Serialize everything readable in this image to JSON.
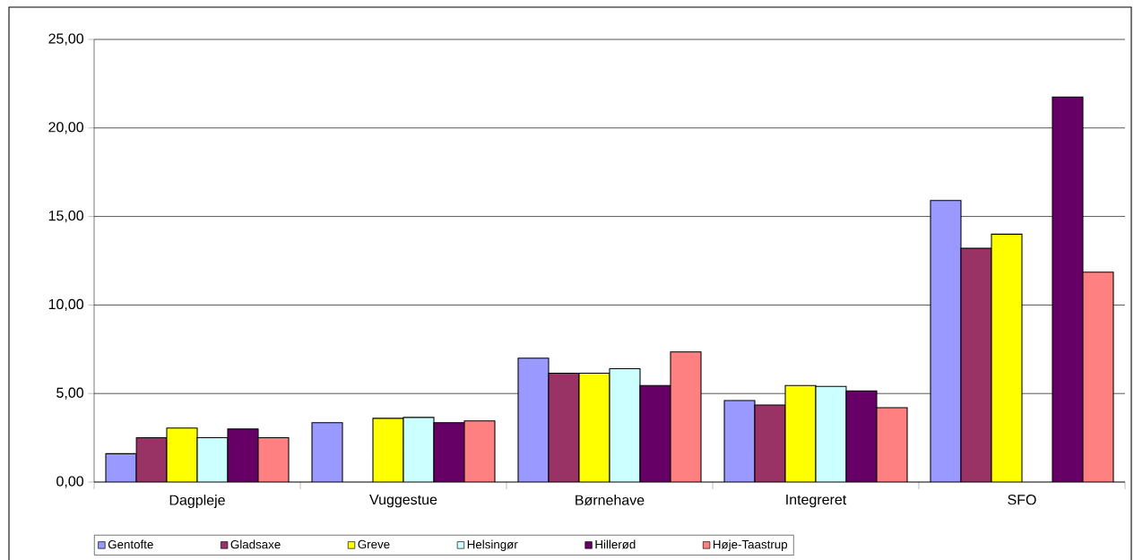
{
  "chart_data": {
    "type": "bar",
    "categories": [
      "Dagpleje",
      "Vuggestue",
      "Børnehave",
      "Integreret",
      "SFO"
    ],
    "series": [
      {
        "name": "Gentofte",
        "color": "#9999ff",
        "values": [
          1.6,
          3.35,
          7.0,
          4.6,
          15.9
        ]
      },
      {
        "name": "Gladsaxe",
        "color": "#993366",
        "values": [
          2.5,
          null,
          6.15,
          4.35,
          13.2
        ]
      },
      {
        "name": "Greve",
        "color": "#ffff00",
        "values": [
          3.05,
          3.6,
          6.15,
          5.45,
          14.0
        ]
      },
      {
        "name": "Helsingør",
        "color": "#ccffff",
        "values": [
          2.5,
          3.65,
          6.4,
          5.4,
          null
        ]
      },
      {
        "name": "Hillerød",
        "color": "#660066",
        "values": [
          3.0,
          3.35,
          5.45,
          5.15,
          21.75
        ]
      },
      {
        "name": "Høje-Taastrup",
        "color": "#ff8080",
        "values": [
          2.5,
          3.45,
          7.35,
          4.2,
          11.85
        ]
      }
    ],
    "ylim": [
      0,
      25
    ],
    "yticks": [
      {
        "value": 0,
        "label": "0,00"
      },
      {
        "value": 5,
        "label": "5,00"
      },
      {
        "value": 10,
        "label": "10,00"
      },
      {
        "value": 15,
        "label": "15,00"
      },
      {
        "value": 20,
        "label": "20,00"
      },
      {
        "value": 25,
        "label": "25,00"
      }
    ],
    "grid": "y",
    "legend": "bottom"
  }
}
